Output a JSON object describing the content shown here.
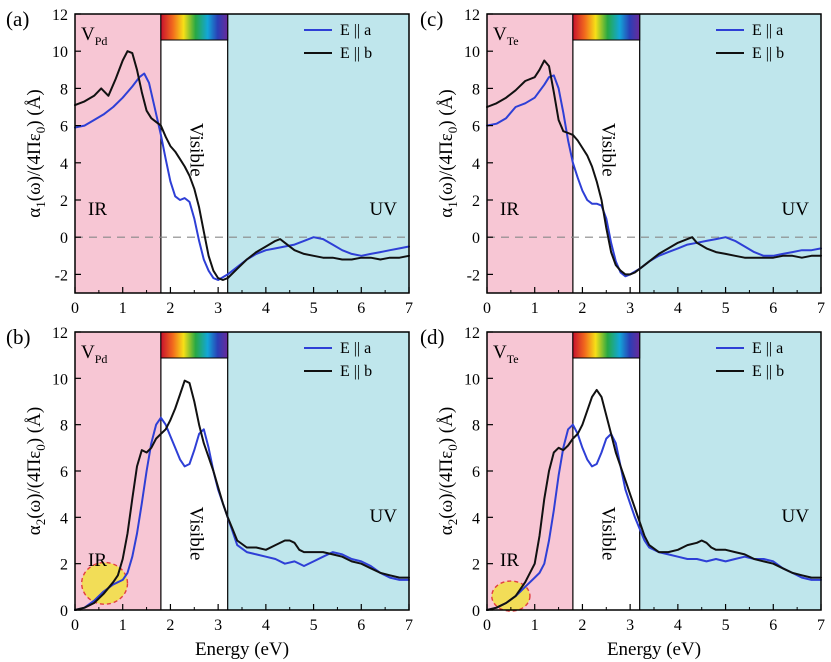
{
  "figure": {
    "x_axis_title": "Energy (eV)",
    "region_labels": {
      "ir": "IR",
      "visible": "Visible",
      "uv": "UV"
    },
    "region_colors": {
      "ir": "#f7c6d4",
      "visible": "#ffffff",
      "uv": "#bfe6ec"
    },
    "series_colors": {
      "E || a": "#2e3fd6",
      "E || b": "#111111"
    },
    "highlight_color": "#f2e04a",
    "highlight_border": "#e03030"
  },
  "chart_data": [
    {
      "id": "a",
      "panel_label": "(a)",
      "type": "line",
      "defect": {
        "main": "V",
        "sub": "Pd"
      },
      "ylabel": {
        "main": "α",
        "sub": "1",
        "rest": "(ω)/(4Πε",
        "sub2": "0",
        "tail": ") (Å)"
      },
      "xlim": [
        0,
        7
      ],
      "ylim": [
        -3,
        12
      ],
      "xticks": [
        0,
        1,
        2,
        3,
        4,
        5,
        6,
        7
      ],
      "yticks": [
        -2,
        0,
        2,
        4,
        6,
        8,
        10,
        12
      ],
      "regions": {
        "ir": [
          0,
          1.8
        ],
        "visible": [
          1.8,
          3.2
        ],
        "uv": [
          3.2,
          7
        ]
      },
      "zero_line": true,
      "highlight": null,
      "series": [
        {
          "name": "E || a",
          "x": [
            0,
            0.2,
            0.4,
            0.6,
            0.8,
            1.0,
            1.2,
            1.35,
            1.45,
            1.55,
            1.65,
            1.8,
            1.9,
            2.0,
            2.1,
            2.2,
            2.3,
            2.4,
            2.5,
            2.6,
            2.7,
            2.8,
            2.9,
            3.0,
            3.2,
            3.4,
            3.6,
            3.8,
            4.0,
            4.2,
            4.4,
            4.6,
            4.8,
            5.0,
            5.2,
            5.4,
            5.6,
            5.8,
            6.0,
            6.2,
            6.4,
            6.6,
            6.8,
            7.0
          ],
          "values": [
            5.9,
            6.0,
            6.3,
            6.6,
            7.0,
            7.5,
            8.1,
            8.6,
            8.8,
            8.3,
            7.2,
            5.5,
            4.2,
            3.0,
            2.2,
            2.0,
            2.1,
            1.9,
            1.0,
            -0.2,
            -1.2,
            -1.8,
            -2.2,
            -2.3,
            -2.0,
            -1.6,
            -1.2,
            -0.9,
            -0.7,
            -0.6,
            -0.5,
            -0.4,
            -0.2,
            0.0,
            -0.1,
            -0.4,
            -0.7,
            -0.9,
            -1.0,
            -0.9,
            -0.8,
            -0.7,
            -0.6,
            -0.5
          ]
        },
        {
          "name": "E || b",
          "x": [
            0,
            0.2,
            0.4,
            0.55,
            0.7,
            0.85,
            1.0,
            1.1,
            1.2,
            1.3,
            1.4,
            1.5,
            1.6,
            1.7,
            1.8,
            1.9,
            2.0,
            2.1,
            2.2,
            2.3,
            2.4,
            2.5,
            2.6,
            2.7,
            2.8,
            2.9,
            3.0,
            3.1,
            3.2,
            3.4,
            3.6,
            3.8,
            4.0,
            4.2,
            4.3,
            4.4,
            4.6,
            4.8,
            5.0,
            5.2,
            5.4,
            5.6,
            5.8,
            6.0,
            6.2,
            6.4,
            6.6,
            6.8,
            7.0
          ],
          "values": [
            7.1,
            7.3,
            7.6,
            8.0,
            7.6,
            8.5,
            9.5,
            10.0,
            9.9,
            9.0,
            7.8,
            6.8,
            6.4,
            6.2,
            6.0,
            5.4,
            4.9,
            4.6,
            4.2,
            3.8,
            3.3,
            2.6,
            1.6,
            0.3,
            -1.0,
            -1.8,
            -2.2,
            -2.3,
            -2.2,
            -1.7,
            -1.2,
            -0.8,
            -0.5,
            -0.2,
            -0.1,
            -0.3,
            -0.7,
            -0.9,
            -1.0,
            -1.1,
            -1.1,
            -1.2,
            -1.2,
            -1.1,
            -1.1,
            -1.2,
            -1.1,
            -1.1,
            -1.0
          ]
        }
      ]
    },
    {
      "id": "b",
      "panel_label": "(b)",
      "type": "line",
      "defect": {
        "main": "V",
        "sub": "Pd"
      },
      "ylabel": {
        "main": "α",
        "sub": "2",
        "rest": "(ω)/(4Πε",
        "sub2": "0",
        "tail": ") (Å)"
      },
      "xlim": [
        0,
        7
      ],
      "ylim": [
        0,
        12
      ],
      "xticks": [
        0,
        1,
        2,
        3,
        4,
        5,
        6,
        7
      ],
      "yticks": [
        0,
        2,
        4,
        6,
        8,
        10,
        12
      ],
      "regions": {
        "ir": [
          0,
          1.8
        ],
        "visible": [
          1.8,
          3.2
        ],
        "uv": [
          3.2,
          7
        ]
      },
      "zero_line": false,
      "highlight": {
        "cx": 0.62,
        "cy": 1.15,
        "rx": 0.48,
        "ry": 0.9
      },
      "series": [
        {
          "name": "E || a",
          "x": [
            0,
            0.2,
            0.4,
            0.6,
            0.8,
            0.9,
            1.0,
            1.1,
            1.2,
            1.3,
            1.4,
            1.5,
            1.6,
            1.7,
            1.8,
            1.9,
            2.0,
            2.1,
            2.2,
            2.3,
            2.4,
            2.5,
            2.6,
            2.7,
            2.8,
            2.9,
            3.0,
            3.1,
            3.2,
            3.3,
            3.4,
            3.6,
            3.8,
            4.0,
            4.2,
            4.4,
            4.6,
            4.8,
            5.0,
            5.2,
            5.4,
            5.6,
            5.8,
            6.0,
            6.2,
            6.4,
            6.6,
            6.8,
            7.0
          ],
          "values": [
            0,
            0.1,
            0.4,
            0.8,
            1.1,
            1.2,
            1.3,
            1.6,
            2.3,
            3.3,
            4.6,
            6.0,
            7.2,
            8.0,
            8.3,
            8.0,
            7.5,
            7.0,
            6.5,
            6.2,
            6.3,
            6.9,
            7.6,
            7.8,
            7.0,
            6.0,
            5.2,
            4.6,
            4.0,
            3.4,
            2.8,
            2.5,
            2.4,
            2.3,
            2.2,
            2.0,
            2.1,
            1.9,
            2.1,
            2.3,
            2.5,
            2.4,
            2.2,
            2.1,
            1.9,
            1.6,
            1.4,
            1.3,
            1.3
          ]
        },
        {
          "name": "E || b",
          "x": [
            0,
            0.2,
            0.4,
            0.6,
            0.8,
            0.9,
            1.0,
            1.1,
            1.2,
            1.3,
            1.4,
            1.5,
            1.6,
            1.7,
            1.8,
            1.9,
            2.0,
            2.1,
            2.2,
            2.3,
            2.4,
            2.5,
            2.6,
            2.7,
            2.8,
            2.9,
            3.0,
            3.1,
            3.2,
            3.3,
            3.4,
            3.6,
            3.8,
            4.0,
            4.2,
            4.4,
            4.5,
            4.6,
            4.7,
            4.8,
            5.0,
            5.2,
            5.4,
            5.6,
            5.8,
            6.0,
            6.2,
            6.4,
            6.6,
            6.8,
            7.0
          ],
          "values": [
            0,
            0.1,
            0.3,
            0.7,
            1.2,
            1.5,
            2.2,
            3.3,
            4.8,
            6.2,
            6.9,
            6.8,
            7.0,
            7.4,
            7.6,
            7.8,
            8.2,
            8.7,
            9.3,
            9.9,
            9.8,
            9.0,
            8.0,
            7.2,
            6.6,
            6.0,
            5.3,
            4.6,
            4.0,
            3.5,
            3.0,
            2.7,
            2.7,
            2.6,
            2.8,
            3.0,
            3.0,
            2.9,
            2.6,
            2.5,
            2.5,
            2.5,
            2.4,
            2.3,
            2.1,
            2.0,
            1.8,
            1.6,
            1.5,
            1.4,
            1.4
          ]
        }
      ]
    },
    {
      "id": "c",
      "panel_label": "(c)",
      "type": "line",
      "defect": {
        "main": "V",
        "sub": "Te"
      },
      "ylabel": {
        "main": "α",
        "sub": "1",
        "rest": "(ω)/(4Πε",
        "sub2": "0",
        "tail": ") (Å)"
      },
      "xlim": [
        0,
        7
      ],
      "ylim": [
        -3,
        12
      ],
      "xticks": [
        0,
        1,
        2,
        3,
        4,
        5,
        6,
        7
      ],
      "yticks": [
        -2,
        0,
        2,
        4,
        6,
        8,
        10,
        12
      ],
      "regions": {
        "ir": [
          0,
          1.8
        ],
        "visible": [
          1.8,
          3.2
        ],
        "uv": [
          3.2,
          7
        ]
      },
      "zero_line": true,
      "highlight": null,
      "series": [
        {
          "name": "E || a",
          "x": [
            0,
            0.2,
            0.4,
            0.6,
            0.8,
            1.0,
            1.2,
            1.3,
            1.4,
            1.5,
            1.6,
            1.7,
            1.8,
            1.9,
            2.0,
            2.1,
            2.2,
            2.3,
            2.4,
            2.5,
            2.6,
            2.7,
            2.8,
            2.9,
            3.0,
            3.2,
            3.4,
            3.6,
            3.8,
            4.0,
            4.2,
            4.4,
            4.6,
            4.8,
            5.0,
            5.2,
            5.4,
            5.6,
            5.8,
            6.0,
            6.2,
            6.4,
            6.6,
            6.8,
            7.0
          ],
          "values": [
            6.0,
            6.1,
            6.4,
            7.0,
            7.2,
            7.5,
            8.2,
            8.6,
            8.7,
            8.0,
            6.7,
            5.2,
            4.0,
            3.2,
            2.5,
            2.0,
            1.8,
            1.8,
            1.7,
            1.0,
            -0.3,
            -1.3,
            -1.9,
            -2.1,
            -2.0,
            -1.7,
            -1.3,
            -1.0,
            -0.8,
            -0.6,
            -0.4,
            -0.3,
            -0.2,
            -0.1,
            0.0,
            -0.2,
            -0.5,
            -0.8,
            -1.0,
            -1.0,
            -0.9,
            -0.8,
            -0.7,
            -0.7,
            -0.6
          ]
        },
        {
          "name": "E || b",
          "x": [
            0,
            0.2,
            0.4,
            0.6,
            0.8,
            1.0,
            1.1,
            1.2,
            1.3,
            1.4,
            1.5,
            1.6,
            1.7,
            1.8,
            1.9,
            2.0,
            2.1,
            2.2,
            2.3,
            2.4,
            2.5,
            2.6,
            2.7,
            2.8,
            2.9,
            3.0,
            3.1,
            3.2,
            3.4,
            3.6,
            3.8,
            4.0,
            4.2,
            4.3,
            4.4,
            4.6,
            4.8,
            5.0,
            5.2,
            5.4,
            5.6,
            5.8,
            6.0,
            6.2,
            6.4,
            6.6,
            6.8,
            7.0
          ],
          "values": [
            7.0,
            7.2,
            7.5,
            7.9,
            8.4,
            8.6,
            9.0,
            9.5,
            9.2,
            7.8,
            6.3,
            5.7,
            5.6,
            5.5,
            5.2,
            4.8,
            4.4,
            3.8,
            3.0,
            2.0,
            0.5,
            -0.8,
            -1.5,
            -1.8,
            -2.0,
            -2.0,
            -1.9,
            -1.7,
            -1.3,
            -0.9,
            -0.6,
            -0.3,
            -0.1,
            0.0,
            -0.3,
            -0.6,
            -0.8,
            -0.9,
            -1.0,
            -1.1,
            -1.1,
            -1.1,
            -1.1,
            -1.0,
            -1.0,
            -1.1,
            -1.0,
            -1.0
          ]
        }
      ]
    },
    {
      "id": "d",
      "panel_label": "(d)",
      "type": "line",
      "defect": {
        "main": "V",
        "sub": "Te"
      },
      "ylabel": {
        "main": "α",
        "sub": "2",
        "rest": "(ω)/(4Πε",
        "sub2": "0",
        "tail": ") (Å)"
      },
      "xlim": [
        0,
        7
      ],
      "ylim": [
        0,
        12
      ],
      "xticks": [
        0,
        1,
        2,
        3,
        4,
        5,
        6,
        7
      ],
      "yticks": [
        0,
        2,
        4,
        6,
        8,
        10,
        12
      ],
      "regions": {
        "ir": [
          0,
          1.8
        ],
        "visible": [
          1.8,
          3.2
        ],
        "uv": [
          3.2,
          7
        ]
      },
      "zero_line": false,
      "highlight": {
        "cx": 0.5,
        "cy": 0.6,
        "rx": 0.4,
        "ry": 0.65
      },
      "series": [
        {
          "name": "E || a",
          "x": [
            0,
            0.2,
            0.4,
            0.6,
            0.8,
            1.0,
            1.1,
            1.2,
            1.3,
            1.4,
            1.5,
            1.6,
            1.7,
            1.8,
            1.9,
            2.0,
            2.1,
            2.2,
            2.3,
            2.4,
            2.5,
            2.6,
            2.7,
            2.8,
            2.9,
            3.0,
            3.1,
            3.2,
            3.3,
            3.4,
            3.6,
            3.8,
            4.0,
            4.2,
            4.4,
            4.6,
            4.8,
            5.0,
            5.2,
            5.4,
            5.6,
            5.8,
            6.0,
            6.2,
            6.4,
            6.6,
            6.8,
            7.0
          ],
          "values": [
            0,
            0.1,
            0.3,
            0.6,
            1.0,
            1.4,
            1.6,
            2.0,
            3.0,
            4.3,
            5.8,
            7.0,
            7.8,
            8.0,
            7.6,
            7.0,
            6.5,
            6.2,
            6.3,
            6.8,
            7.4,
            7.6,
            7.2,
            6.2,
            5.2,
            4.6,
            4.0,
            3.5,
            3.0,
            2.7,
            2.5,
            2.4,
            2.3,
            2.2,
            2.2,
            2.1,
            2.2,
            2.1,
            2.2,
            2.3,
            2.2,
            2.2,
            2.1,
            1.8,
            1.6,
            1.4,
            1.3,
            1.3
          ]
        },
        {
          "name": "E || b",
          "x": [
            0,
            0.2,
            0.4,
            0.6,
            0.8,
            1.0,
            1.1,
            1.2,
            1.3,
            1.4,
            1.5,
            1.6,
            1.7,
            1.8,
            1.9,
            2.0,
            2.1,
            2.2,
            2.3,
            2.4,
            2.5,
            2.6,
            2.7,
            2.8,
            2.9,
            3.0,
            3.1,
            3.2,
            3.3,
            3.4,
            3.6,
            3.8,
            4.0,
            4.2,
            4.4,
            4.5,
            4.6,
            4.7,
            4.8,
            5.0,
            5.2,
            5.4,
            5.6,
            5.8,
            6.0,
            6.2,
            6.4,
            6.6,
            6.8,
            7.0
          ],
          "values": [
            0,
            0.1,
            0.3,
            0.6,
            1.2,
            2.0,
            3.2,
            4.8,
            6.0,
            6.8,
            7.0,
            6.9,
            7.1,
            7.4,
            7.6,
            8.0,
            8.6,
            9.2,
            9.5,
            9.2,
            8.4,
            7.6,
            6.8,
            6.2,
            5.6,
            5.0,
            4.4,
            3.8,
            3.2,
            2.8,
            2.5,
            2.5,
            2.6,
            2.8,
            2.9,
            3.0,
            2.9,
            2.7,
            2.6,
            2.6,
            2.5,
            2.4,
            2.2,
            2.1,
            2.0,
            1.8,
            1.6,
            1.5,
            1.4,
            1.4
          ]
        }
      ]
    }
  ]
}
